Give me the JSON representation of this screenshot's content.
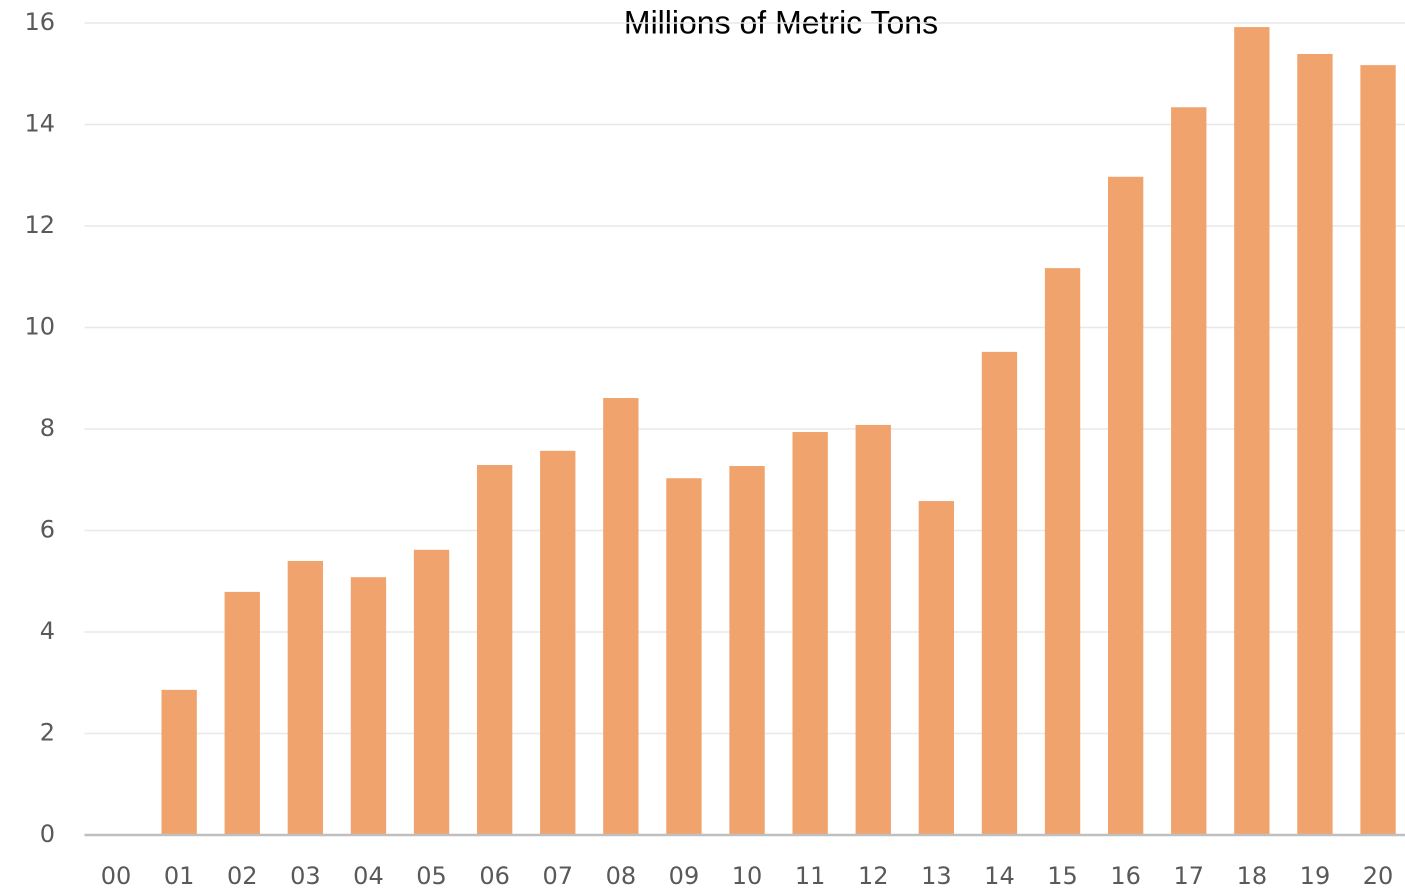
{
  "chart_data": {
    "type": "bar",
    "title": "Millions of Metric Tons",
    "categories": [
      "00",
      "01",
      "02",
      "03",
      "04",
      "05",
      "06",
      "07",
      "08",
      "09",
      "10",
      "11",
      "12",
      "13",
      "14",
      "15",
      "16",
      "17",
      "18",
      "19",
      "20"
    ],
    "values": [
      0,
      2.86,
      4.79,
      5.4,
      5.08,
      5.62,
      7.29,
      7.57,
      8.61,
      7.03,
      7.27,
      7.94,
      8.08,
      6.58,
      9.52,
      11.17,
      12.97,
      14.34,
      15.92,
      15.39,
      15.17
    ],
    "color": "#f0a36c",
    "ylim": [
      0,
      16
    ],
    "yticks": [
      0,
      2,
      4,
      6,
      8,
      10,
      12,
      14,
      16
    ],
    "grid": true
  }
}
